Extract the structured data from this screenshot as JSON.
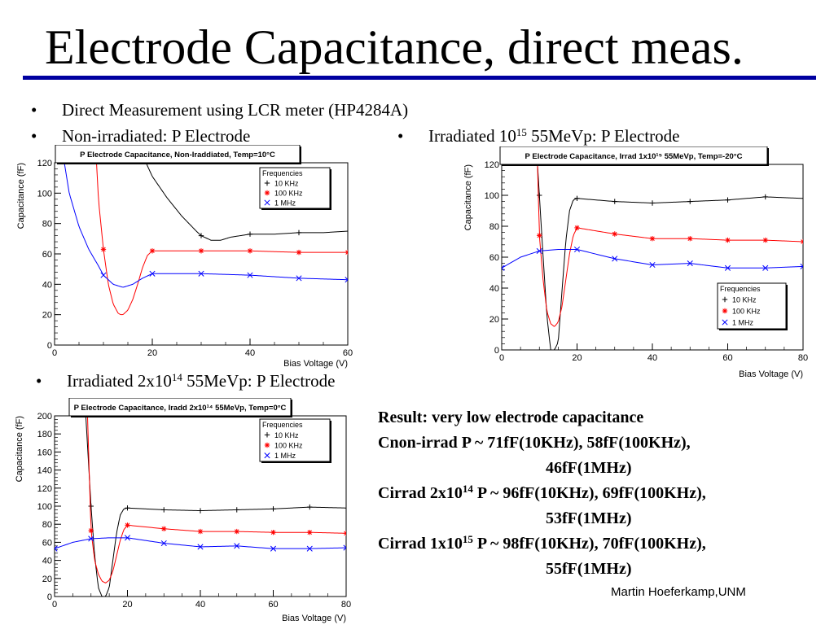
{
  "slide": {
    "title": "Electrode Capacitance, direct meas.",
    "bullets": [
      "Direct Measurement using LCR meter (HP4284A)",
      "Non-irradiated:  P Electrode"
    ],
    "bullet_irr15": {
      "pre": "Irradiated 10",
      "sup": "15",
      "post": " 55MeVp:  P Electrode"
    },
    "bullet_irr14": {
      "pre": "Irradiated 2x10",
      "sup": "14",
      "post": " 55MeVp:  P Electrode"
    },
    "bullet_symbol": "•",
    "result": {
      "heading": "Result: very low electrode capacitance",
      "nonirr_line1": "Cnon-irrad   P ~ 71fF(10KHz), 58fF(100KHz),",
      "nonirr_line2": "46fF(1MHz)",
      "irr14_pre": "Cirrad 2x10",
      "irr14_sup": "14",
      "irr14_line1": "  P ~ 96fF(10KHz), 69fF(100KHz),",
      "irr14_line2": "53fF(1MHz)",
      "irr15_pre": "Cirrad 1x10",
      "irr15_sup": "15",
      "irr15_line1": "  P ~ 98fF(10KHz), 70fF(100KHz),",
      "irr15_line2": "55fF(1MHz)"
    },
    "author": "Martin Hoeferkamp,UNM"
  },
  "chart_data": [
    {
      "type": "line",
      "title": "P Electrode Capacitance, Non-Iraddiated, Temp=10°C",
      "xlabel": "Bias Voltage (V)",
      "ylabel": "Capacitance (fF)",
      "xlim": [
        0,
        60
      ],
      "ylim": [
        0,
        120
      ],
      "xticks": [
        0,
        20,
        40,
        60
      ],
      "yticks": [
        0,
        20,
        40,
        60,
        80,
        100,
        120
      ],
      "grid": false,
      "legend": {
        "title": "Frequencies",
        "position": "top-right"
      },
      "series": [
        {
          "name": "10 KHz",
          "color": "#000000",
          "marker": "+",
          "x": [
            18,
            20,
            23,
            26,
            29,
            30,
            32,
            34,
            36,
            40,
            45,
            50,
            55,
            60
          ],
          "y": [
            125,
            111,
            97,
            85,
            75,
            72,
            69,
            69,
            71,
            73,
            73,
            74,
            74,
            75
          ],
          "markers_x": [
            30,
            40,
            50
          ],
          "markers_y": [
            72,
            73,
            74
          ]
        },
        {
          "name": "100 KHz",
          "color": "#ff0000",
          "marker": "*",
          "x": [
            8.5,
            9,
            10,
            11,
            12,
            13,
            13.5,
            14,
            15,
            16,
            17,
            18,
            19,
            20,
            25,
            30,
            40,
            50,
            60
          ],
          "y": [
            125,
            95,
            63,
            40,
            27,
            21,
            20,
            20,
            23,
            30,
            40,
            51,
            59,
            62,
            62,
            62,
            62,
            61,
            61
          ],
          "markers_x": [
            10,
            20,
            30,
            40,
            50,
            60
          ],
          "markers_y": [
            63,
            62,
            62,
            62,
            61,
            61
          ]
        },
        {
          "name": "1 MHz",
          "color": "#0000ff",
          "marker": "x",
          "x": [
            2,
            3,
            5,
            7,
            9,
            10,
            12,
            14,
            16,
            18,
            20,
            25,
            30,
            40,
            50,
            60
          ],
          "y": [
            120,
            100,
            78,
            63,
            52,
            46,
            40,
            38,
            40,
            44,
            47,
            47,
            47,
            46,
            44,
            43
          ],
          "markers_x": [
            10,
            20,
            30,
            40,
            50,
            60
          ],
          "markers_y": [
            46,
            47,
            47,
            46,
            44,
            43
          ]
        }
      ]
    },
    {
      "type": "line",
      "title": "P Electrode Capacitance, Irrad 1x10¹⁵ 55MeVp, Temp=-20°C",
      "xlabel": "Bias Voltage (V)",
      "ylabel": "Capacitance (fF)",
      "xlim": [
        0,
        80
      ],
      "ylim": [
        0,
        120
      ],
      "xticks": [
        0,
        20,
        40,
        60,
        80
      ],
      "yticks": [
        0,
        20,
        40,
        60,
        80,
        100,
        120
      ],
      "grid": false,
      "legend": {
        "title": "Frequencies",
        "position": "bottom-right"
      },
      "series": [
        {
          "name": "10 KHz",
          "color": "#000000",
          "marker": "+",
          "x": [
            9.5,
            10,
            11,
            12,
            13,
            14,
            15,
            16,
            17,
            18,
            19,
            20,
            30,
            40,
            50,
            60,
            70,
            80
          ],
          "y": [
            120,
            100,
            60,
            22,
            0,
            0,
            5,
            38,
            70,
            90,
            97,
            98,
            96,
            95,
            96,
            97,
            99,
            98
          ],
          "markers_x": [
            10,
            20,
            30,
            40,
            50,
            60,
            70
          ],
          "markers_y": [
            100,
            98,
            96,
            95,
            96,
            97,
            99
          ]
        },
        {
          "name": "100 KHz",
          "color": "#ff0000",
          "marker": "*",
          "x": [
            9.5,
            10,
            11,
            12,
            13,
            14,
            15,
            16,
            17,
            18,
            19,
            20,
            30,
            40,
            50,
            60,
            70,
            80
          ],
          "y": [
            120,
            74,
            45,
            25,
            17,
            15,
            18,
            28,
            45,
            62,
            74,
            79,
            75,
            72,
            72,
            71,
            71,
            70
          ],
          "markers_x": [
            10,
            20,
            30,
            40,
            50,
            60,
            70,
            80
          ],
          "markers_y": [
            74,
            79,
            75,
            72,
            72,
            71,
            71,
            70
          ]
        },
        {
          "name": "1 MHz",
          "color": "#0000ff",
          "marker": "x",
          "x": [
            0,
            5,
            10,
            15,
            20,
            25,
            30,
            40,
            50,
            60,
            70,
            80
          ],
          "y": [
            53,
            60,
            64,
            65,
            65,
            62,
            59,
            55,
            56,
            53,
            53,
            54
          ],
          "markers_x": [
            0,
            10,
            20,
            30,
            40,
            50,
            60,
            70,
            80
          ],
          "markers_y": [
            53,
            64,
            65,
            59,
            55,
            56,
            53,
            53,
            54
          ]
        }
      ]
    },
    {
      "type": "line",
      "title": "P Electrode Capacitance, Iradd 2x10¹⁴ 55MeVp, Temp=0°C",
      "xlabel": "Bias Voltage (V)",
      "ylabel": "Capacitance (fF)",
      "xlim": [
        0,
        80
      ],
      "ylim": [
        0,
        200
      ],
      "xticks": [
        0,
        20,
        40,
        60,
        80
      ],
      "yticks": [
        0,
        20,
        40,
        60,
        80,
        100,
        120,
        140,
        160,
        180,
        200
      ],
      "grid": false,
      "legend": {
        "title": "Frequencies",
        "position": "top-right"
      },
      "series": [
        {
          "name": "10 KHz",
          "color": "#000000",
          "marker": "+",
          "x": [
            8.5,
            9,
            10,
            11,
            12,
            13,
            14,
            15,
            16,
            17,
            18,
            19,
            20,
            30,
            40,
            50,
            60,
            70,
            80
          ],
          "y": [
            205,
            170,
            100,
            45,
            10,
            0,
            0,
            10,
            40,
            70,
            90,
            97,
            98,
            96,
            95,
            96,
            97,
            99,
            98
          ],
          "markers_x": [
            10,
            20,
            30,
            40,
            50,
            60,
            70
          ],
          "markers_y": [
            100,
            98,
            96,
            95,
            96,
            97,
            99
          ]
        },
        {
          "name": "100 KHz",
          "color": "#ff0000",
          "marker": "*",
          "x": [
            9,
            10,
            11,
            12,
            13,
            14,
            15,
            16,
            17,
            18,
            19,
            20,
            30,
            40,
            50,
            60,
            70,
            80
          ],
          "y": [
            205,
            73,
            40,
            25,
            17,
            15,
            18,
            28,
            45,
            62,
            74,
            79,
            75,
            72,
            72,
            71,
            71,
            70
          ],
          "markers_x": [
            10,
            20,
            30,
            40,
            50,
            60,
            70,
            80
          ],
          "markers_y": [
            73,
            79,
            75,
            72,
            72,
            71,
            71,
            70
          ]
        },
        {
          "name": "1 MHz",
          "color": "#0000ff",
          "marker": "x",
          "x": [
            0,
            5,
            10,
            15,
            20,
            25,
            30,
            40,
            50,
            60,
            70,
            80
          ],
          "y": [
            53,
            60,
            64,
            65,
            65,
            62,
            59,
            55,
            56,
            53,
            53,
            54
          ],
          "markers_x": [
            0,
            10,
            20,
            30,
            40,
            50,
            60,
            70,
            80
          ],
          "markers_y": [
            53,
            64,
            65,
            59,
            55,
            56,
            53,
            53,
            54
          ]
        }
      ]
    }
  ]
}
